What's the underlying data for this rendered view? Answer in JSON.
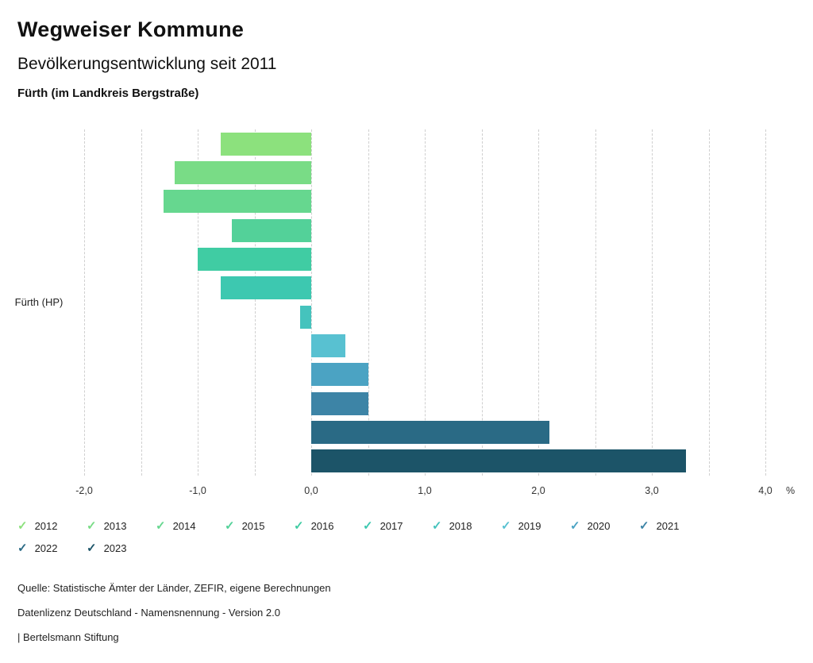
{
  "header": {
    "title": "Wegweiser Kommune",
    "subtitle": "Bevölkerungsentwicklung seit 2011",
    "region": "Fürth (im Landkreis Bergstraße)"
  },
  "chart_data": {
    "type": "bar",
    "orientation": "horizontal",
    "group_label": "Fürth (HP)",
    "unit": "%",
    "categories": [
      "2012",
      "2013",
      "2014",
      "2015",
      "2016",
      "2017",
      "2018",
      "2019",
      "2020",
      "2021",
      "2022",
      "2023"
    ],
    "values": [
      -0.8,
      -1.2,
      -1.3,
      -0.7,
      -1.0,
      -0.8,
      -0.1,
      0.3,
      0.5,
      0.5,
      2.1,
      3.3
    ],
    "colors": [
      "#8CE17D",
      "#79DC86",
      "#66D78F",
      "#53D199",
      "#40CCA3",
      "#3DC8B0",
      "#45C3BD",
      "#58C1D1",
      "#4BA3C3",
      "#3D84A6",
      "#2A6A85",
      "#1C5468"
    ],
    "xlim": [
      -2.0,
      4.0
    ],
    "x_major_ticks": [
      -2,
      -1,
      0,
      1,
      2,
      3,
      4
    ],
    "x_tick_labels": [
      "-2,0",
      "-1,0",
      "0,0",
      "1,0",
      "2,0",
      "3,0",
      "4,0"
    ],
    "x_minor_step": 0.5,
    "grid": "dashed"
  },
  "legend": {
    "items": [
      {
        "label": "2012",
        "color": "#8CE17D",
        "checked": true
      },
      {
        "label": "2013",
        "color": "#79DC86",
        "checked": true
      },
      {
        "label": "2014",
        "color": "#66D78F",
        "checked": true
      },
      {
        "label": "2015",
        "color": "#53D199",
        "checked": true
      },
      {
        "label": "2016",
        "color": "#40CCA3",
        "checked": true
      },
      {
        "label": "2017",
        "color": "#3DC8B0",
        "checked": true
      },
      {
        "label": "2018",
        "color": "#45C3BD",
        "checked": true
      },
      {
        "label": "2019",
        "color": "#58C1D1",
        "checked": true
      },
      {
        "label": "2020",
        "color": "#4BA3C3",
        "checked": true
      },
      {
        "label": "2021",
        "color": "#3D84A6",
        "checked": true
      },
      {
        "label": "2022",
        "color": "#2A6A85",
        "checked": true
      },
      {
        "label": "2023",
        "color": "#1C5468",
        "checked": true
      }
    ]
  },
  "footer": {
    "source": "Quelle: Statistische Ämter der Länder, ZEFIR, eigene Berechnungen",
    "license": "Datenlizenz Deutschland - Namensnennung - Version 2.0",
    "brand": "| Bertelsmann Stiftung"
  }
}
